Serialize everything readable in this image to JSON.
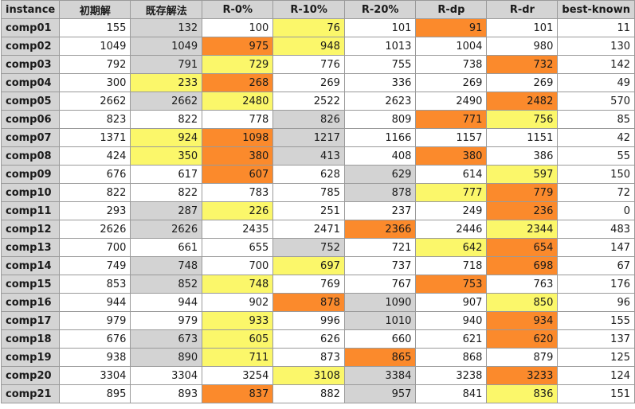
{
  "table": {
    "headers": [
      "instance",
      "初期解",
      "既存解法",
      "R-0%",
      "R-10%",
      "R-20%",
      "R-dp",
      "R-dr",
      "best-known"
    ],
    "rows": [
      {
        "name": "comp01",
        "values": [
          "155",
          "132",
          "100",
          "76",
          "101",
          "91",
          "101",
          "11"
        ],
        "colors": [
          "",
          "gray",
          "",
          "yellow",
          "",
          "orange",
          "",
          ""
        ]
      },
      {
        "name": "comp02",
        "values": [
          "1049",
          "1049",
          "975",
          "948",
          "1013",
          "1004",
          "980",
          "130"
        ],
        "colors": [
          "",
          "gray",
          "orange",
          "yellow",
          "",
          "",
          "",
          ""
        ]
      },
      {
        "name": "comp03",
        "values": [
          "792",
          "791",
          "729",
          "776",
          "755",
          "738",
          "732",
          "142"
        ],
        "colors": [
          "",
          "gray",
          "yellow",
          "",
          "",
          "",
          "orange",
          ""
        ]
      },
      {
        "name": "comp04",
        "values": [
          "300",
          "233",
          "268",
          "269",
          "336",
          "269",
          "269",
          "49"
        ],
        "colors": [
          "",
          "yellow",
          "orange",
          "",
          "",
          "",
          "",
          ""
        ]
      },
      {
        "name": "comp05",
        "values": [
          "2662",
          "2662",
          "2480",
          "2522",
          "2623",
          "2490",
          "2482",
          "570"
        ],
        "colors": [
          "",
          "gray",
          "yellow",
          "",
          "",
          "",
          "orange",
          ""
        ]
      },
      {
        "name": "comp06",
        "values": [
          "823",
          "822",
          "778",
          "826",
          "809",
          "771",
          "756",
          "85"
        ],
        "colors": [
          "",
          "",
          "",
          "gray",
          "",
          "orange",
          "yellow",
          ""
        ]
      },
      {
        "name": "comp07",
        "values": [
          "1371",
          "924",
          "1098",
          "1217",
          "1166",
          "1157",
          "1151",
          "42"
        ],
        "colors": [
          "",
          "yellow",
          "orange",
          "gray",
          "",
          "",
          "",
          ""
        ]
      },
      {
        "name": "comp08",
        "values": [
          "424",
          "350",
          "380",
          "413",
          "408",
          "380",
          "386",
          "55"
        ],
        "colors": [
          "",
          "yellow",
          "orange",
          "gray",
          "",
          "orange",
          "",
          ""
        ]
      },
      {
        "name": "comp09",
        "values": [
          "676",
          "617",
          "607",
          "628",
          "629",
          "614",
          "597",
          "150"
        ],
        "colors": [
          "",
          "",
          "orange",
          "",
          "gray",
          "",
          "yellow",
          ""
        ]
      },
      {
        "name": "comp10",
        "values": [
          "822",
          "822",
          "783",
          "785",
          "878",
          "777",
          "779",
          "72"
        ],
        "colors": [
          "",
          "",
          "",
          "",
          "gray",
          "yellow",
          "orange",
          ""
        ]
      },
      {
        "name": "comp11",
        "values": [
          "293",
          "287",
          "226",
          "251",
          "237",
          "249",
          "236",
          "0"
        ],
        "colors": [
          "",
          "gray",
          "yellow",
          "",
          "",
          "",
          "orange",
          ""
        ]
      },
      {
        "name": "comp12",
        "values": [
          "2626",
          "2626",
          "2435",
          "2471",
          "2366",
          "2446",
          "2344",
          "483"
        ],
        "colors": [
          "",
          "gray",
          "",
          "",
          "orange",
          "",
          "yellow",
          ""
        ]
      },
      {
        "name": "comp13",
        "values": [
          "700",
          "661",
          "655",
          "752",
          "721",
          "642",
          "654",
          "147"
        ],
        "colors": [
          "",
          "",
          "",
          "gray",
          "",
          "yellow",
          "orange",
          ""
        ]
      },
      {
        "name": "comp14",
        "values": [
          "749",
          "748",
          "700",
          "697",
          "737",
          "718",
          "698",
          "67"
        ],
        "colors": [
          "",
          "gray",
          "",
          "yellow",
          "",
          "",
          "orange",
          ""
        ]
      },
      {
        "name": "comp15",
        "values": [
          "853",
          "852",
          "748",
          "769",
          "767",
          "753",
          "763",
          "176"
        ],
        "colors": [
          "",
          "gray",
          "yellow",
          "",
          "",
          "orange",
          "",
          ""
        ]
      },
      {
        "name": "comp16",
        "values": [
          "944",
          "944",
          "902",
          "878",
          "1090",
          "907",
          "850",
          "96"
        ],
        "colors": [
          "",
          "",
          "",
          "orange",
          "gray",
          "",
          "yellow",
          ""
        ]
      },
      {
        "name": "comp17",
        "values": [
          "979",
          "979",
          "933",
          "996",
          "1010",
          "940",
          "934",
          "155"
        ],
        "colors": [
          "",
          "",
          "yellow",
          "",
          "gray",
          "",
          "orange",
          ""
        ]
      },
      {
        "name": "comp18",
        "values": [
          "676",
          "673",
          "605",
          "626",
          "660",
          "621",
          "620",
          "137"
        ],
        "colors": [
          "",
          "gray",
          "yellow",
          "",
          "",
          "",
          "orange",
          ""
        ]
      },
      {
        "name": "comp19",
        "values": [
          "938",
          "890",
          "711",
          "873",
          "865",
          "868",
          "879",
          "125"
        ],
        "colors": [
          "",
          "gray",
          "yellow",
          "",
          "orange",
          "",
          "",
          ""
        ]
      },
      {
        "name": "comp20",
        "values": [
          "3304",
          "3304",
          "3254",
          "3108",
          "3384",
          "3238",
          "3233",
          "124"
        ],
        "colors": [
          "",
          "",
          "",
          "yellow",
          "gray",
          "",
          "orange",
          ""
        ]
      },
      {
        "name": "comp21",
        "values": [
          "895",
          "893",
          "837",
          "882",
          "957",
          "841",
          "836",
          "151"
        ],
        "colors": [
          "",
          "",
          "orange",
          "",
          "gray",
          "",
          "yellow",
          ""
        ]
      }
    ],
    "palette": {
      "gray": "#d3d3d3",
      "yellow": "#fbf76a",
      "orange": "#fb8a2c",
      "header": "#d4d4d4",
      "border": "#9a9a9a"
    }
  }
}
